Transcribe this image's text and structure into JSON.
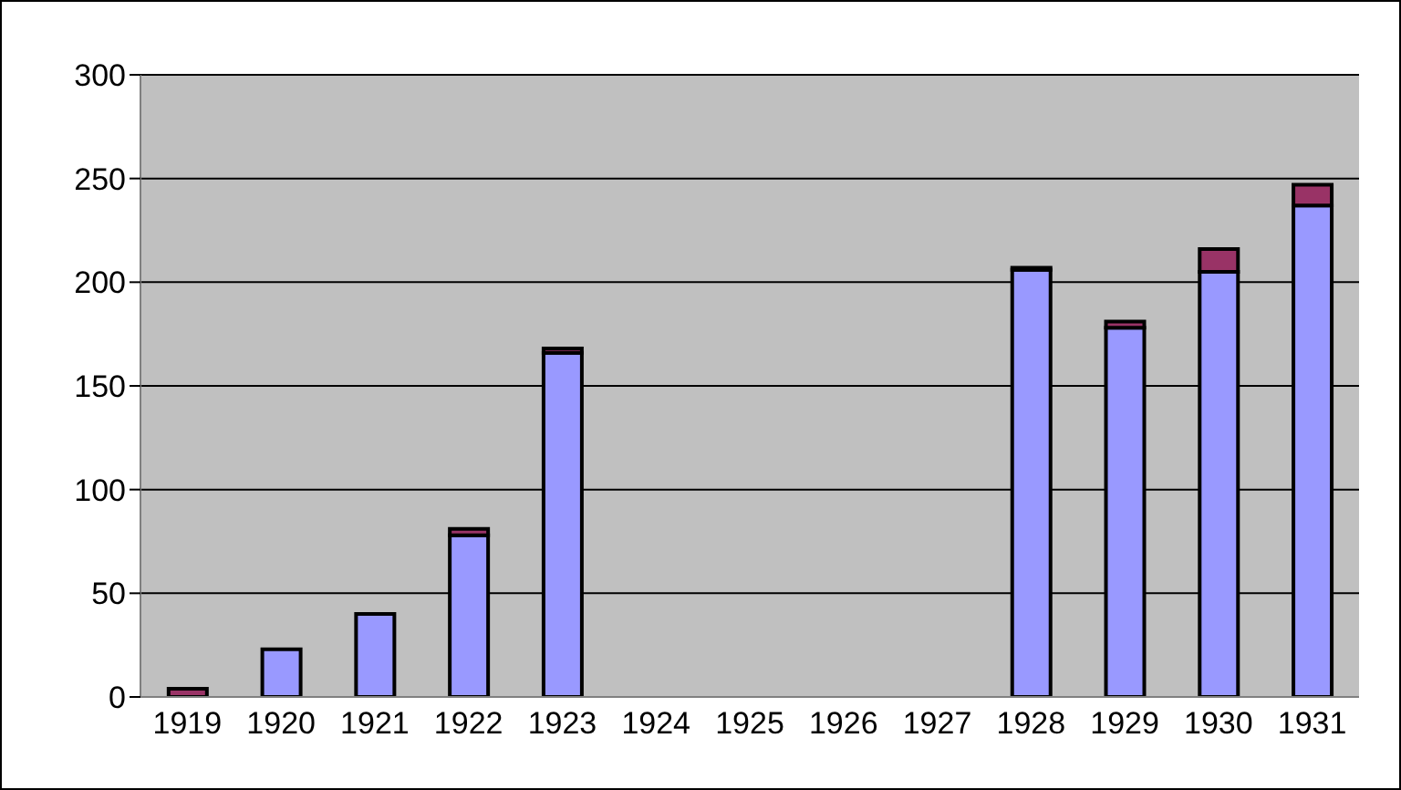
{
  "chart_data": {
    "type": "bar",
    "stacked": true,
    "categories": [
      "1919",
      "1920",
      "1921",
      "1922",
      "1923",
      "1924",
      "1925",
      "1926",
      "1927",
      "1928",
      "1929",
      "1930",
      "1931"
    ],
    "series": [
      {
        "color": "#9999ff",
        "values": [
          0,
          23,
          40,
          78,
          166,
          0,
          0,
          0,
          0,
          206,
          178,
          205,
          237
        ]
      },
      {
        "color": "#993366",
        "values": [
          4,
          0,
          0,
          3,
          2,
          0,
          0,
          0,
          0,
          1,
          3,
          11,
          10
        ]
      }
    ],
    "ylim": [
      0,
      300
    ],
    "yticks": [
      0,
      50,
      100,
      150,
      200,
      250,
      300
    ],
    "grid": "y",
    "legend": false
  }
}
